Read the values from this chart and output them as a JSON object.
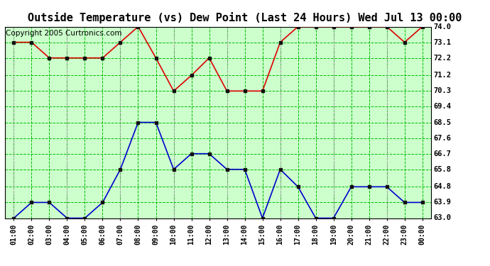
{
  "title": "Outside Temperature (vs) Dew Point (Last 24 Hours) Wed Jul 13 00:00",
  "copyright": "Copyright 2005 Curtronics.com",
  "x_labels": [
    "01:00",
    "02:00",
    "03:00",
    "04:00",
    "05:00",
    "06:00",
    "07:00",
    "08:00",
    "09:00",
    "10:00",
    "11:00",
    "12:00",
    "13:00",
    "14:00",
    "15:00",
    "16:00",
    "17:00",
    "18:00",
    "19:00",
    "20:00",
    "21:00",
    "22:00",
    "23:00",
    "00:00"
  ],
  "y_ticks": [
    63.0,
    63.9,
    64.8,
    65.8,
    66.7,
    67.6,
    68.5,
    69.4,
    70.3,
    71.2,
    72.2,
    73.1,
    74.0
  ],
  "y_min": 63.0,
  "y_max": 74.0,
  "red_data": [
    73.1,
    73.1,
    72.2,
    72.2,
    72.2,
    72.2,
    73.1,
    74.0,
    72.2,
    70.3,
    71.2,
    72.2,
    70.3,
    70.3,
    70.3,
    73.1,
    74.0,
    74.0,
    74.0,
    74.0,
    74.0,
    74.0,
    73.1,
    74.0
  ],
  "blue_data": [
    63.0,
    63.9,
    63.9,
    63.0,
    63.0,
    63.9,
    65.8,
    68.5,
    68.5,
    65.8,
    66.7,
    66.7,
    65.8,
    65.8,
    63.0,
    65.8,
    64.8,
    63.0,
    63.0,
    64.8,
    64.8,
    64.8,
    63.9,
    63.9
  ],
  "bg_color": "#ffffff",
  "plot_bg_color": "#ccffcc",
  "red_color": "#dd0000",
  "blue_color": "#0000cc",
  "grid_green": "#00bb00",
  "grid_grey": "#aaaaaa",
  "title_fontsize": 11,
  "copyright_fontsize": 7.5,
  "major_vert_indices": [
    0,
    3,
    6,
    9,
    12,
    15,
    18,
    21
  ]
}
